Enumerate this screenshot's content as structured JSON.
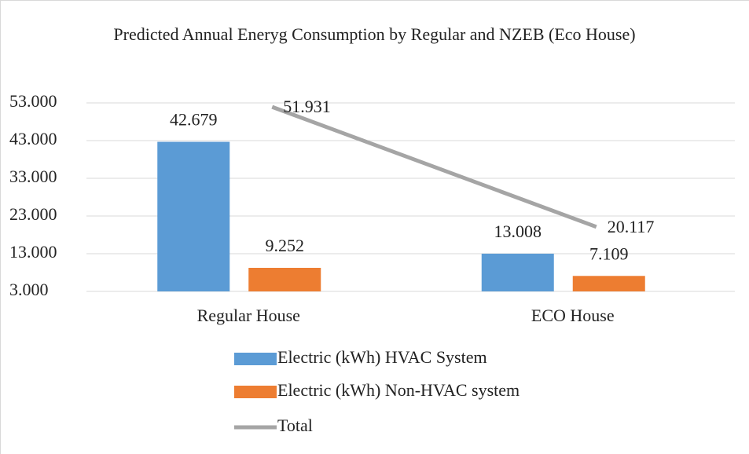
{
  "chart_data": {
    "type": "bar",
    "title": "Predicted Annual Eneryg Consumption by Regular and NZEB (Eco House)",
    "categories": [
      "Regular House",
      "ECO House"
    ],
    "series": [
      {
        "name": "Electric (kWh) HVAC System",
        "type": "bar",
        "color": "#5b9bd5",
        "values": [
          42679,
          13008
        ],
        "value_labels": [
          "42.679",
          "13.008"
        ]
      },
      {
        "name": "Electric (kWh) Non-HVAC system",
        "type": "bar",
        "color": "#ed7d31",
        "values": [
          9252,
          7109
        ],
        "value_labels": [
          "9.252",
          "7.109"
        ]
      },
      {
        "name": "Total",
        "type": "line",
        "color": "#a5a5a5",
        "values": [
          51931,
          20117
        ],
        "value_labels": [
          "51.931",
          "20.117"
        ]
      }
    ],
    "ylim": [
      3000,
      53000
    ],
    "yticks": [
      {
        "value": 3000,
        "label": "3.000"
      },
      {
        "value": 13000,
        "label": "13.000"
      },
      {
        "value": 23000,
        "label": "23.000"
      },
      {
        "value": 33000,
        "label": "33.000"
      },
      {
        "value": 43000,
        "label": "43.000"
      },
      {
        "value": 53000,
        "label": "53.000"
      }
    ],
    "grid": true,
    "legend": "bottom"
  }
}
